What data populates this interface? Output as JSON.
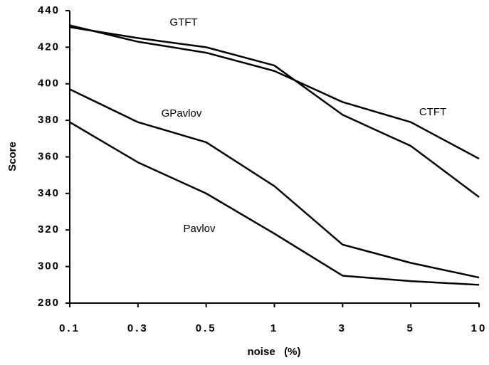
{
  "chart_data": {
    "type": "line",
    "x_label": "noise   (%)",
    "y_label": "Score",
    "categories": [
      "0.1",
      "0.3",
      "0.5",
      "1",
      "3",
      "5",
      "10"
    ],
    "series": [
      {
        "name": "GTFT",
        "color": "#000000",
        "values": [
          431,
          425,
          420,
          410,
          383,
          366,
          338
        ]
      },
      {
        "name": "CTFT",
        "color": "#000000",
        "values": [
          432,
          423,
          417,
          407,
          390,
          379,
          359
        ]
      },
      {
        "name": "GPavlov",
        "color": "#000000",
        "values": [
          397,
          379,
          368,
          344,
          312,
          302,
          294
        ]
      },
      {
        "name": "Pavlov",
        "color": "#000000",
        "values": [
          379,
          357,
          340,
          318,
          295,
          292,
          290
        ]
      }
    ],
    "ylim": [
      280,
      440
    ],
    "yticks": [
      280,
      300,
      320,
      340,
      360,
      380,
      400,
      420,
      440
    ],
    "grid": false
  }
}
